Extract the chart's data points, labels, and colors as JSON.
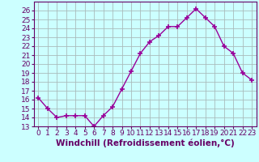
{
  "x": [
    0,
    1,
    2,
    3,
    4,
    5,
    6,
    7,
    8,
    9,
    10,
    11,
    12,
    13,
    14,
    15,
    16,
    17,
    18,
    19,
    20,
    21,
    22,
    23
  ],
  "y": [
    16.2,
    15.0,
    14.0,
    14.2,
    14.2,
    14.2,
    13.0,
    14.2,
    15.2,
    17.2,
    19.2,
    21.2,
    22.5,
    23.2,
    24.2,
    24.2,
    25.2,
    26.2,
    25.2,
    24.2,
    22.0,
    21.2,
    19.0,
    18.2
  ],
  "line_color": "#990099",
  "marker": "+",
  "marker_size": 4,
  "marker_lw": 1.2,
  "bg_color": "#ccffff",
  "grid_color": "#aabbbb",
  "xlabel": "Windchill (Refroidissement éolien,°C)",
  "xlabel_fontsize": 7.5,
  "tick_label_color": "#660066",
  "xlabel_color": "#660066",
  "xlim": [
    -0.5,
    23.5
  ],
  "ylim": [
    13,
    27
  ],
  "yticks": [
    13,
    14,
    15,
    16,
    17,
    18,
    19,
    20,
    21,
    22,
    23,
    24,
    25,
    26
  ],
  "xtick_labels": [
    "0",
    "1",
    "2",
    "3",
    "4",
    "5",
    "6",
    "7",
    "8",
    "9",
    "10",
    "11",
    "12",
    "13",
    "14",
    "15",
    "16",
    "17",
    "18",
    "19",
    "20",
    "21",
    "22",
    "23"
  ],
  "tick_fontsize": 6.5,
  "line_width": 1.0
}
